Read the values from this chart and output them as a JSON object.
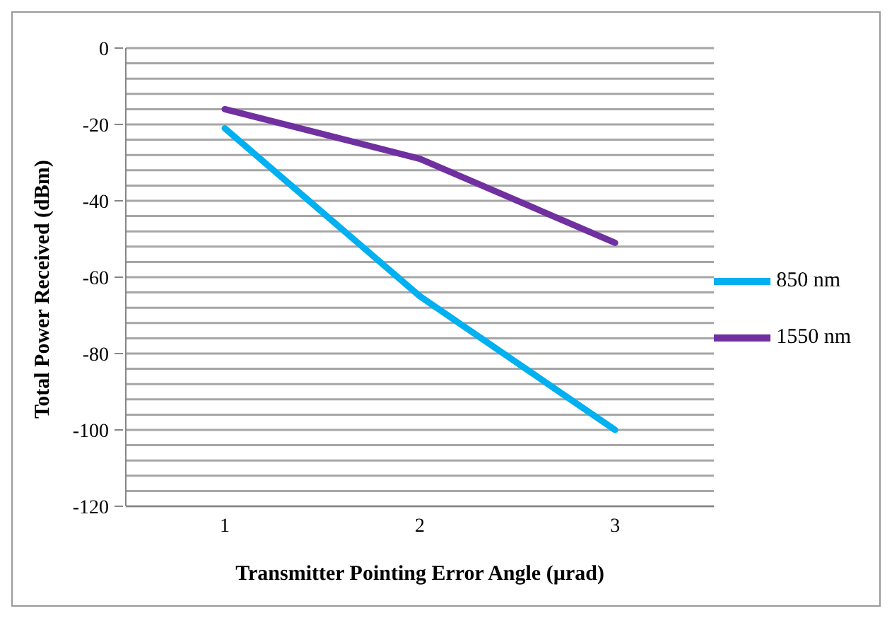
{
  "chart_data": {
    "type": "line",
    "xlabel": "Transmitter Pointing Error Angle (µrad)",
    "ylabel": "Total Power Received (dBm)",
    "categories": [
      "1",
      "2",
      "3"
    ],
    "series": [
      {
        "name": "850 nm",
        "color": "#00b0f0",
        "values": [
          -21,
          -65,
          -100
        ]
      },
      {
        "name": "1550 nm",
        "color": "#7030a0",
        "values": [
          -16,
          -29,
          -51
        ]
      }
    ],
    "ylim": [
      -120,
      0
    ],
    "yticks": [
      -120,
      {
        "value": -116,
        "label": null
      },
      {
        "value": -112,
        "label": null
      },
      {
        "value": -108,
        "label": null
      },
      {
        "value": -104,
        "label": null
      },
      -100,
      {
        "value": -96,
        "label": null
      },
      {
        "value": -92,
        "label": null
      },
      {
        "value": -88,
        "label": null
      },
      {
        "value": -84,
        "label": null
      },
      -80,
      {
        "value": -76,
        "label": null
      },
      {
        "value": -72,
        "label": null
      },
      {
        "value": -68,
        "label": null
      },
      {
        "value": -64,
        "label": null
      },
      -60,
      {
        "value": -56,
        "label": null
      },
      {
        "value": -52,
        "label": null
      },
      {
        "value": -48,
        "label": null
      },
      {
        "value": -44,
        "label": null
      },
      -40,
      {
        "value": -36,
        "label": null
      },
      {
        "value": -32,
        "label": null
      },
      {
        "value": -28,
        "label": null
      },
      {
        "value": -24,
        "label": null
      },
      -20,
      {
        "value": -16,
        "label": null
      },
      {
        "value": -12,
        "label": null
      },
      {
        "value": -8,
        "label": null
      },
      {
        "value": -4,
        "label": null
      },
      0
    ],
    "grid": "y",
    "legend": "right",
    "marker": "none",
    "line_style": "solid"
  }
}
